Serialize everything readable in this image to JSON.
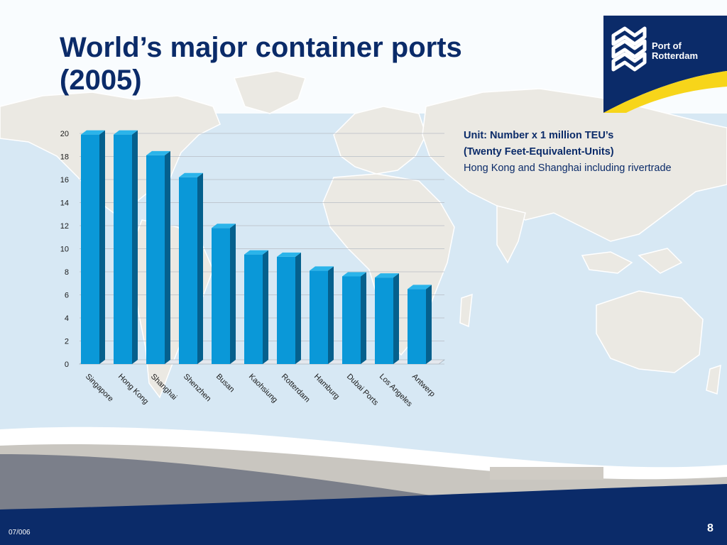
{
  "slide": {
    "title_line1": "World’s major container ports",
    "title_line2": "(2005)",
    "note_line1": "Unit: Number x 1 million TEU’s",
    "note_line2": "(Twenty Feet-Equivalent-Units)",
    "note_line3": "Hong Kong and Shanghai including rivertrade",
    "footer_date": "07/006",
    "page_number": "8"
  },
  "logo": {
    "line1": "Port of",
    "line2": "Rotterdam"
  },
  "colors": {
    "title": "#0b2b69",
    "bar_front": "#0a98d8",
    "bar_side": "#05608d",
    "bar_top": "#2bb4ea",
    "navy": "#0b2b69",
    "logo_yellow": "#f7d51a"
  },
  "chart_data": {
    "type": "bar",
    "categories": [
      "Singapore",
      "Hong Kong",
      "Shanghai",
      "Shenzhen",
      "Busan",
      "Kaohsiung",
      "Rotterdam",
      "Hamburg",
      "Dubai Ports",
      "Los Angeles",
      "Antwerp"
    ],
    "values": [
      19.9,
      19.9,
      18.1,
      16.2,
      11.8,
      9.5,
      9.3,
      8.1,
      7.6,
      7.5,
      6.5
    ],
    "ylim": [
      0,
      20
    ],
    "yticks": [
      "0",
      "2",
      "4",
      "6",
      "8",
      "10",
      "12",
      "14",
      "16",
      "18",
      "20"
    ],
    "grid": true,
    "legend": "none",
    "style": "3d"
  }
}
